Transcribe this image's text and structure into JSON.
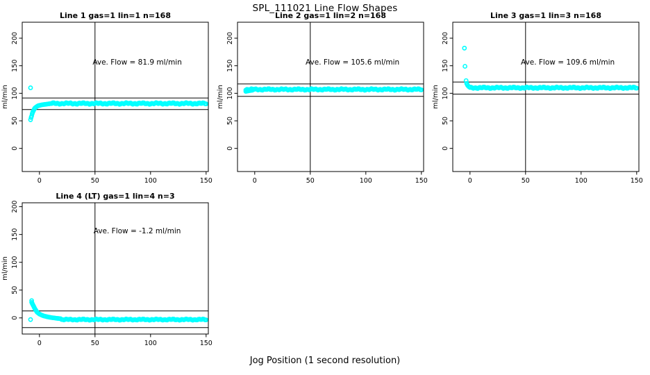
{
  "figure": {
    "title": "SPL_111021  Line Flow Shapes",
    "xlabel": "Jog Position (1 second resolution)",
    "point_color": "#00ffff",
    "axis_color": "#000000",
    "background": "#ffffff"
  },
  "chart_data": [
    {
      "type": "scatter",
      "title": "Line 1 gas=1 lin=1 n=168",
      "annotation": "Ave. Flow =  81.9  ml/min",
      "ave_flow_ml_min": 81.9,
      "ylabel": "ml/min",
      "xticks": [
        0,
        50,
        100,
        150
      ],
      "yticks": [
        0,
        50,
        100,
        150,
        200
      ],
      "xlim": [
        -15.5,
        152
      ],
      "ylim": [
        -42,
        229
      ],
      "vline_x": 50,
      "ref_lines": [
        91.5,
        70.5
      ],
      "annotation_xy": [
        88,
        152
      ],
      "points_outliers": [
        [
          -8,
          110
        ]
      ],
      "points_rise": [
        [
          -8,
          52
        ],
        [
          -7.5,
          56
        ],
        [
          -7,
          59
        ],
        [
          -6.5,
          63
        ],
        [
          -6,
          66
        ],
        [
          -5.5,
          68
        ],
        [
          -5,
          70
        ],
        [
          -4.5,
          72
        ],
        [
          -4,
          73.5
        ],
        [
          -3,
          75
        ],
        [
          -2,
          76.5
        ],
        [
          -1,
          77.5
        ],
        [
          0,
          78
        ],
        [
          1,
          78.5
        ],
        [
          2,
          79
        ],
        [
          3,
          79.3
        ],
        [
          4,
          79.6
        ],
        [
          5,
          79.9
        ],
        [
          6,
          80.1
        ],
        [
          7,
          80.4
        ],
        [
          8,
          80.7
        ],
        [
          9,
          81
        ]
      ],
      "points_steady": {
        "x_from": 10,
        "x_to": 150,
        "step": 1,
        "level": 81.5,
        "wiggle": 1.6
      }
    },
    {
      "type": "scatter",
      "title": "Line 2 gas=1 lin=2 n=168",
      "annotation": "Ave. Flow =  105.6  ml/min",
      "ave_flow_ml_min": 105.6,
      "ylabel": "ml/min",
      "xticks": [
        0,
        50,
        100,
        150
      ],
      "yticks": [
        0,
        50,
        100,
        150,
        200
      ],
      "xlim": [
        -15.5,
        152
      ],
      "ylim": [
        -42,
        229
      ],
      "vline_x": 50,
      "ref_lines": [
        117,
        94.5
      ],
      "annotation_xy": [
        88,
        152
      ],
      "points_outliers": [],
      "points_rise": [
        [
          -8,
          103.5
        ],
        [
          -7,
          104
        ],
        [
          -6,
          104.3
        ],
        [
          -5,
          104.7
        ],
        [
          -4,
          105
        ],
        [
          -3,
          105.3
        ],
        [
          -2,
          105.6
        ]
      ],
      "points_steady": {
        "x_from": -8,
        "x_to": 150,
        "step": 1,
        "level": 107,
        "wiggle": 1.5
      }
    },
    {
      "type": "scatter",
      "title": "Line 3 gas=1 lin=3 n=168",
      "annotation": "Ave. Flow =  109.6  ml/min",
      "ave_flow_ml_min": 109.6,
      "ylabel": "ml/min",
      "xticks": [
        0,
        50,
        100,
        150
      ],
      "yticks": [
        0,
        50,
        100,
        150,
        200
      ],
      "xlim": [
        -15.5,
        152
      ],
      "ylim": [
        -42,
        229
      ],
      "vline_x": 50,
      "ref_lines": [
        120.5,
        98.5
      ],
      "annotation_xy": [
        88,
        152
      ],
      "points_outliers": [
        [
          -5,
          182
        ],
        [
          -4.5,
          149
        ],
        [
          -3.5,
          123
        ]
      ],
      "points_rise": [
        [
          -3,
          118
        ],
        [
          -2.5,
          116
        ],
        [
          -2,
          114
        ],
        [
          -1,
          112
        ],
        [
          0,
          111
        ]
      ],
      "points_steady": {
        "x_from": 0,
        "x_to": 150,
        "step": 1,
        "level": 110,
        "wiggle": 1.5
      }
    },
    {
      "type": "scatter",
      "title": "Line 4 (LT) gas=1 lin=4 n=3",
      "annotation": "Ave. Flow =  -1.2  ml/min",
      "ave_flow_ml_min": -1.2,
      "ylabel": "ml/min",
      "xticks": [
        0,
        50,
        100,
        150
      ],
      "yticks": [
        0,
        50,
        100,
        150,
        200
      ],
      "xlim": [
        -15.5,
        152
      ],
      "ylim": [
        -29,
        207
      ],
      "vline_x": 50,
      "ref_lines": [
        12.5,
        -17.5
      ],
      "annotation_xy": [
        88,
        152
      ],
      "points_outliers": [
        [
          -8,
          -3
        ]
      ],
      "points_rise": [
        [
          -7,
          31
        ],
        [
          -7,
          28
        ],
        [
          -6.5,
          26
        ],
        [
          -6,
          24
        ],
        [
          -5.5,
          22
        ],
        [
          -5,
          20
        ],
        [
          -4.5,
          18
        ],
        [
          -4,
          16
        ],
        [
          -3.5,
          14.5
        ],
        [
          -3,
          13
        ],
        [
          -2.5,
          11.5
        ],
        [
          -2,
          10
        ],
        [
          -1,
          8.5
        ],
        [
          0,
          7
        ],
        [
          1,
          6
        ],
        [
          2,
          5
        ],
        [
          3,
          4.2
        ],
        [
          4,
          3.5
        ],
        [
          5,
          3
        ],
        [
          6,
          2.5
        ],
        [
          7,
          2
        ],
        [
          8,
          1.6
        ],
        [
          9,
          1.2
        ],
        [
          10,
          0.8
        ],
        [
          11,
          0.5
        ],
        [
          12,
          0.2
        ],
        [
          13,
          0
        ],
        [
          14,
          -0.3
        ],
        [
          15,
          -0.6
        ],
        [
          16,
          -0.8
        ],
        [
          17,
          -1
        ],
        [
          18,
          -1.2
        ],
        [
          19,
          -1.4
        ]
      ],
      "points_steady": {
        "x_from": 20,
        "x_to": 150,
        "step": 1,
        "level": -3,
        "wiggle": 1.2
      }
    }
  ]
}
